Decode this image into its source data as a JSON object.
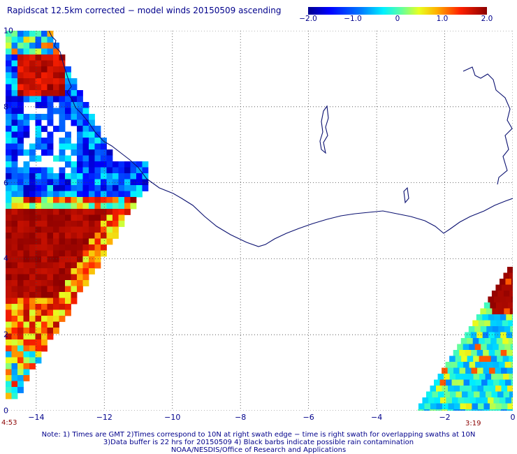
{
  "header": {
    "title": "Rapidscat 12.5km corrected − model winds 20150509 ascending"
  },
  "colorbar": {
    "min": -2.0,
    "max": 2.0,
    "labels": [
      "−2.0",
      "−1.0",
      "0",
      "1.0",
      "2.0"
    ],
    "label_values": [
      -2.0,
      -1.0,
      0.0,
      1.0,
      2.0
    ]
  },
  "chart_data": {
    "type": "heatmap",
    "x_ticks": [
      "−14",
      "−12",
      "−10",
      "−8",
      "−6",
      "−4",
      "−2",
      "0"
    ],
    "x_tick_values": [
      -14,
      -12,
      -10,
      -8,
      -6,
      -4,
      -2,
      0
    ],
    "y_ticks": [
      "0",
      "2",
      "4",
      "6",
      "8",
      "10"
    ],
    "y_tick_values": [
      0,
      2,
      4,
      6,
      8,
      10
    ],
    "xlim": [
      -14.9,
      0
    ],
    "ylim": [
      0,
      10
    ],
    "grid": true,
    "left_swath_time": "4:53",
    "right_swath_time": "3:19"
  },
  "colors": {
    "text": "#00008b",
    "coast": "#0a1070",
    "time": "#8b0000"
  },
  "footer": {
    "line1": "Note: 1) Times are GMT 2)Times correspond to 10N at right swath edge − time is right swath for overlapping swaths at 10N",
    "line2": "3)Data buffer is 22 hrs for 20150509 4) Black barbs indicate possible rain contamination",
    "line3": "NOAA/NESDIS/Office of Research and Applications"
  }
}
